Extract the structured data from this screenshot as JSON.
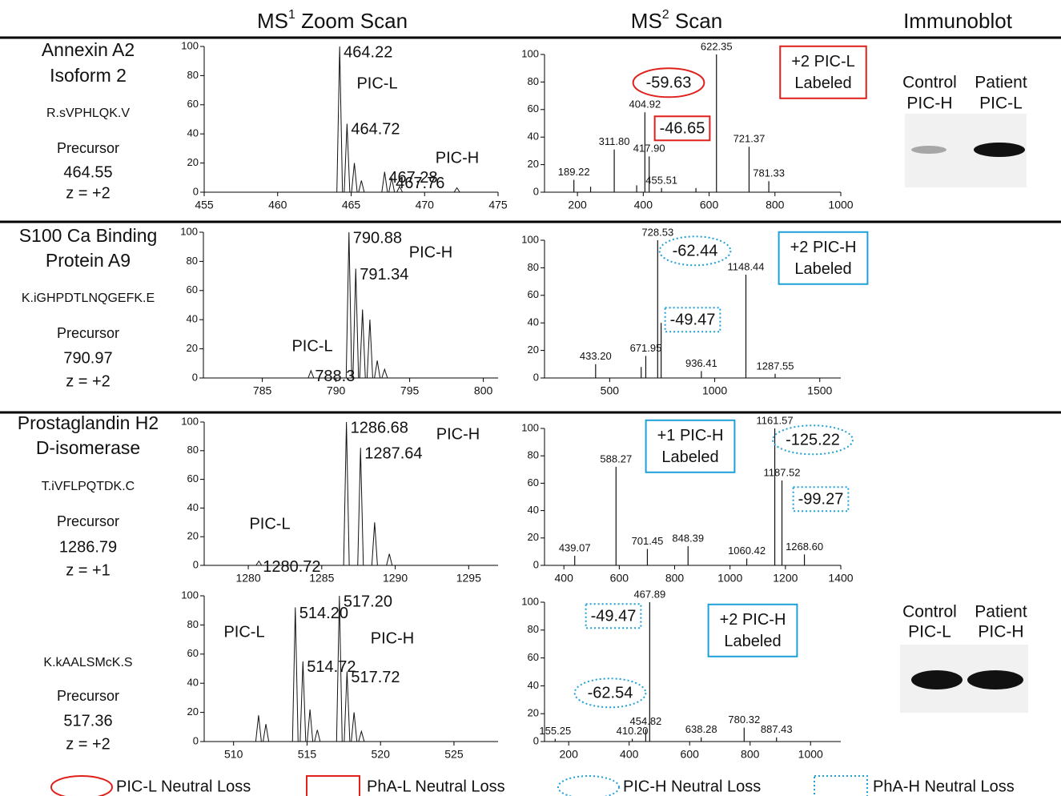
{
  "headers": [
    {
      "text": "MS",
      "sup": "1",
      "rest": " Zoom Scan"
    },
    {
      "text": "MS",
      "sup": "2",
      "rest": " Scan"
    },
    {
      "text": "Immunoblot"
    }
  ],
  "rows": [
    {
      "name": [
        "Annexin A2",
        "Isoform 2"
      ],
      "peptide": "R.sVPHLQK.V",
      "precursor_label": "Precursor",
      "precursor": "464.55",
      "charge": "z = +2"
    },
    {
      "name": [
        "S100 Ca Binding",
        "Protein A9"
      ],
      "peptide": "K.iGHPDTLNQGEFK.E",
      "precursor_label": "Precursor",
      "precursor": "790.97",
      "charge": "z = +2"
    },
    {
      "name": [
        "Prostaglandin H2",
        "D-isomerase"
      ],
      "peptide": "T.iVFLPQTDK.C",
      "precursor_label": "Precursor",
      "precursor": "1286.79",
      "charge": "z = +1"
    },
    {
      "peptide": "K.kAALSMcK.S",
      "precursor_label": "Precursor",
      "precursor": "517.36",
      "charge": "z = +2"
    }
  ],
  "immunoblots": [
    {
      "lanes": [
        {
          "name": "Control",
          "label": "PIC-H",
          "color": "#1ea0d8"
        },
        {
          "name": "Patient",
          "label": "PIC-L",
          "color": "#e0201b"
        }
      ]
    },
    {
      "lanes": [
        {
          "name": "Control",
          "label": "PIC-L",
          "color": "#e0201b"
        },
        {
          "name": "Patient",
          "label": "PIC-H",
          "color": "#1ea0d8"
        }
      ]
    }
  ],
  "legend": [
    {
      "label": "PIC-L Neutral Loss",
      "color": "#e0201b",
      "style": "ellipse"
    },
    {
      "label": "PhA-L Neutral Loss",
      "color": "#e0201b",
      "style": "box"
    },
    {
      "label": "PIC-H Neutral Loss",
      "color": "#1ea0d8",
      "style": "dotted-ellipse"
    },
    {
      "label": "PhA-H Neutral Loss",
      "color": "#1ea0d8",
      "style": "dotted-box"
    }
  ],
  "chart_data": [
    {
      "type": "profile",
      "xlim": [
        455,
        475
      ],
      "xticks": [
        455,
        460,
        465,
        470,
        475
      ],
      "ylim": [
        0,
        100
      ],
      "yticks": [
        0,
        20,
        40,
        60,
        80,
        100
      ],
      "x": [
        464.22,
        464.72,
        465.22,
        465.7,
        467.28,
        467.76,
        468.3,
        472.2
      ],
      "values": [
        100,
        47,
        20,
        8,
        14,
        10,
        4,
        3
      ],
      "x_labels": [
        "464.22",
        "464.72",
        null,
        null,
        "467.28",
        "467.76",
        null,
        null
      ],
      "annotations": [
        {
          "text": [
            "PIC-L"
          ],
          "color": "#e0201b",
          "style": "plain"
        },
        {
          "text": [
            "PIC-H"
          ],
          "color": "#1ea0d8",
          "style": "plain"
        }
      ]
    },
    {
      "type": "stem",
      "xlim": [
        100,
        1000
      ],
      "xticks": [
        200,
        400,
        600,
        800,
        1000
      ],
      "ylim": [
        0,
        100
      ],
      "yticks": [
        0,
        20,
        40,
        60,
        80,
        100
      ],
      "x": [
        189.22,
        240,
        311.8,
        380,
        404.92,
        417.9,
        455.51,
        560,
        622.35,
        721.37,
        781.33
      ],
      "values": [
        9,
        4,
        31,
        5,
        58,
        26,
        3,
        3,
        100,
        33,
        8
      ],
      "x_labels": [
        "189.22",
        null,
        "311.80",
        null,
        "404.92",
        "417.90",
        "455.51",
        null,
        "622.35",
        "721.37",
        "781.33"
      ],
      "annotations": [
        {
          "text": [
            "-59.63"
          ],
          "color": "#e0201b",
          "style": "ellipse"
        },
        {
          "text": [
            "-46.65"
          ],
          "color": "#e0201b",
          "style": "box"
        },
        {
          "text": [
            "+2 PIC-L",
            "Labeled"
          ],
          "color": "#e0201b",
          "style": "label-box"
        }
      ]
    },
    {
      "type": "profile",
      "xlim": [
        781,
        801
      ],
      "xticks": [
        785,
        790,
        795,
        800
      ],
      "ylim": [
        0,
        100
      ],
      "yticks": [
        0,
        20,
        40,
        60,
        80,
        100
      ],
      "x": [
        788.3,
        790.88,
        791.34,
        791.8,
        792.3,
        792.8,
        793.3
      ],
      "values": [
        5,
        100,
        75,
        47,
        40,
        12,
        6
      ],
      "x_labels": [
        "788.3",
        "790.88",
        "791.34",
        null,
        null,
        null,
        null
      ],
      "annotations": [
        {
          "text": [
            "PIC-H"
          ],
          "color": "#1ea0d8",
          "style": "plain"
        },
        {
          "text": [
            "PIC-L"
          ],
          "color": "#e0201b",
          "style": "plain"
        }
      ]
    },
    {
      "type": "stem",
      "xlim": [
        190,
        1600
      ],
      "xticks": [
        500,
        1000,
        1500
      ],
      "ylim": [
        0,
        100
      ],
      "yticks": [
        0,
        20,
        40,
        60,
        80,
        100
      ],
      "x": [
        433.2,
        650,
        671.95,
        728.53,
        745,
        936.41,
        1148.44,
        1287.55
      ],
      "values": [
        10,
        8,
        16,
        100,
        40,
        5,
        75,
        3
      ],
      "x_labels": [
        "433.20",
        null,
        "671.95",
        "728.53",
        null,
        "936.41",
        "1148.44",
        "1287.55"
      ],
      "annotations": [
        {
          "text": [
            "-62.44"
          ],
          "color": "#1ea0d8",
          "style": "dotted-ellipse"
        },
        {
          "text": [
            "-49.47"
          ],
          "color": "#1ea0d8",
          "style": "dotted-box"
        },
        {
          "text": [
            "+2 PIC-H",
            "Labeled"
          ],
          "color": "#1ea0d8",
          "style": "label-box"
        }
      ]
    },
    {
      "type": "profile",
      "xlim": [
        1277,
        1297
      ],
      "xticks": [
        1280,
        1285,
        1290,
        1295
      ],
      "ylim": [
        0,
        100
      ],
      "yticks": [
        0,
        20,
        40,
        60,
        80,
        100
      ],
      "x": [
        1280.72,
        1286.68,
        1287.64,
        1288.6,
        1289.6
      ],
      "values": [
        3,
        100,
        82,
        30,
        8
      ],
      "x_labels": [
        "1280.72",
        "1286.68",
        "1287.64",
        null,
        null
      ],
      "annotations": [
        {
          "text": [
            "PIC-H"
          ],
          "color": "#1ea0d8",
          "style": "plain"
        },
        {
          "text": [
            "PIC-L"
          ],
          "color": "#e0201b",
          "style": "plain"
        }
      ]
    },
    {
      "type": "stem",
      "xlim": [
        330,
        1400
      ],
      "xticks": [
        400,
        600,
        800,
        1000,
        1200,
        1400
      ],
      "ylim": [
        0,
        100
      ],
      "yticks": [
        0,
        20,
        40,
        60,
        80,
        100
      ],
      "x": [
        439.07,
        588.27,
        701.45,
        848.39,
        1060.42,
        1161.57,
        1187.52,
        1268.6
      ],
      "values": [
        7,
        72,
        12,
        14,
        5,
        100,
        62,
        8
      ],
      "x_labels": [
        "439.07",
        "588.27",
        "701.45",
        "848.39",
        "1060.42",
        "1161.57",
        "1187.52",
        "1268.60"
      ],
      "annotations": [
        {
          "text": [
            "+1 PIC-H",
            "Labeled"
          ],
          "color": "#1ea0d8",
          "style": "label-box"
        },
        {
          "text": [
            "-125.22"
          ],
          "color": "#1ea0d8",
          "style": "dotted-ellipse"
        },
        {
          "text": [
            "-99.27"
          ],
          "color": "#1ea0d8",
          "style": "dotted-box"
        }
      ]
    },
    {
      "type": "profile",
      "xlim": [
        508,
        528
      ],
      "xticks": [
        510,
        515,
        520,
        525
      ],
      "ylim": [
        0,
        100
      ],
      "yticks": [
        0,
        20,
        40,
        60,
        80,
        100
      ],
      "x": [
        511.7,
        512.2,
        514.2,
        514.72,
        515.2,
        515.7,
        517.2,
        517.72,
        518.2,
        518.7
      ],
      "values": [
        18,
        12,
        92,
        55,
        22,
        8,
        100,
        48,
        20,
        7
      ],
      "x_labels": [
        null,
        null,
        "514.20",
        "514.72",
        null,
        null,
        "517.20",
        "517.72",
        null,
        null
      ],
      "annotations": [
        {
          "text": [
            "PIC-L"
          ],
          "color": "#e0201b",
          "style": "plain"
        },
        {
          "text": [
            "PIC-H"
          ],
          "color": "#1ea0d8",
          "style": "plain"
        }
      ]
    },
    {
      "type": "stem",
      "xlim": [
        120,
        1100
      ],
      "xticks": [
        200,
        400,
        600,
        800,
        1000
      ],
      "ylim": [
        0,
        100
      ],
      "yticks": [
        0,
        20,
        40,
        60,
        80,
        100
      ],
      "x": [
        155.25,
        410.2,
        454.82,
        467.89,
        638.28,
        780.32,
        887.43
      ],
      "values": [
        2,
        2,
        9,
        100,
        3,
        10,
        3
      ],
      "x_labels": [
        "155.25",
        "410.20",
        "454.82",
        "467.89",
        "638.28",
        "780.32",
        "887.43"
      ],
      "annotations": [
        {
          "text": [
            "-49.47"
          ],
          "color": "#1ea0d8",
          "style": "dotted-box"
        },
        {
          "text": [
            "-62.54"
          ],
          "color": "#1ea0d8",
          "style": "dotted-ellipse"
        },
        {
          "text": [
            "+2 PIC-H",
            "Labeled"
          ],
          "color": "#1ea0d8",
          "style": "label-box"
        }
      ]
    }
  ]
}
